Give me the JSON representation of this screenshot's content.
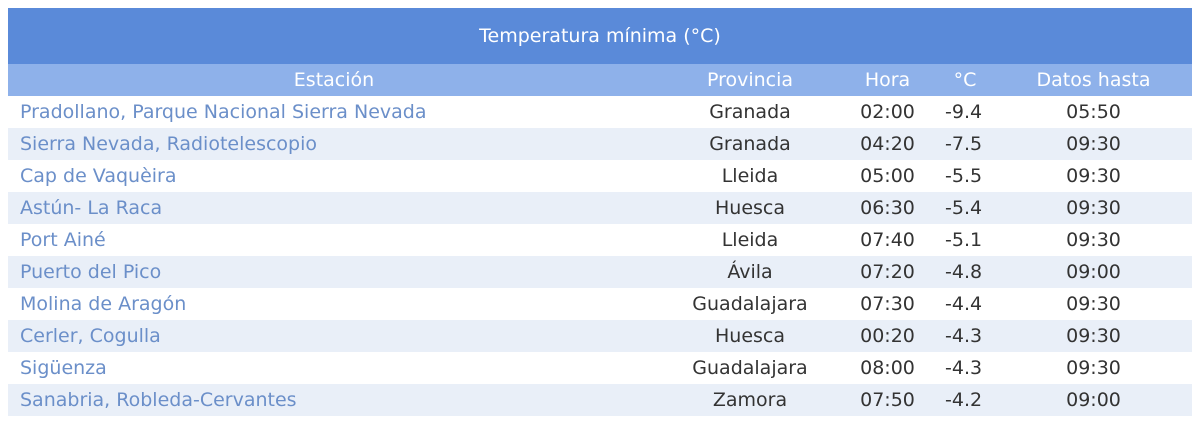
{
  "table": {
    "title": "Temperatura mínima (°C)",
    "columns": [
      "Estación",
      "Provincia",
      "Hora",
      "°C",
      "Datos hasta"
    ],
    "rows": [
      [
        "Pradollano, Parque Nacional Sierra Nevada",
        "Granada",
        "02:00",
        -9.4,
        "05:50"
      ],
      [
        "Sierra Nevada, Radiotelescopio",
        "Granada",
        "04:20",
        -7.5,
        "09:30"
      ],
      [
        "Cap de Vaquèira",
        "Lleida",
        "05:00",
        -5.5,
        "09:30"
      ],
      [
        "Astún- La Raca",
        "Huesca",
        "06:30",
        -5.4,
        "09:30"
      ],
      [
        "Port Ainé",
        "Lleida",
        "07:40",
        -5.1,
        "09:30"
      ],
      [
        "Puerto del Pico",
        "Ávila",
        "07:20",
        -4.8,
        "09:00"
      ],
      [
        "Molina de Aragón",
        "Guadalajara",
        "07:30",
        -4.4,
        "09:30"
      ],
      [
        "Cerler, Cogulla",
        "Huesca",
        "00:20",
        -4.3,
        "09:30"
      ],
      [
        "Sigüenza",
        "Guadalajara",
        "08:00",
        -4.3,
        "09:30"
      ],
      [
        "Sanabria, Robleda-Cervantes",
        "Zamora",
        "07:50",
        -4.2,
        "09:00"
      ]
    ]
  }
}
